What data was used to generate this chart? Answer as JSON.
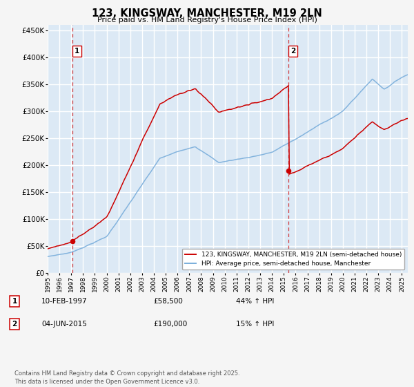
{
  "title": "123, KINGSWAY, MANCHESTER, M19 2LN",
  "subtitle": "Price paid vs. HM Land Registry's House Price Index (HPI)",
  "legend_line1": "123, KINGSWAY, MANCHESTER, M19 2LN (semi-detached house)",
  "legend_line2": "HPI: Average price, semi-detached house, Manchester",
  "annotation1_label": "1",
  "annotation1_date": "10-FEB-1997",
  "annotation1_price": "£58,500",
  "annotation1_hpi": "44% ↑ HPI",
  "annotation2_label": "2",
  "annotation2_date": "04-JUN-2015",
  "annotation2_price": "£190,000",
  "annotation2_hpi": "15% ↑ HPI",
  "footnote": "Contains HM Land Registry data © Crown copyright and database right 2025.\nThis data is licensed under the Open Government Licence v3.0.",
  "sale1_year": 1997.11,
  "sale1_price": 58500,
  "sale2_year": 2015.42,
  "sale2_price": 190000,
  "price_line_color": "#cc0000",
  "hpi_line_color": "#7aaedb",
  "plot_bg_color": "#dce9f5",
  "fig_bg_color": "#f5f5f5",
  "grid_color": "#ffffff",
  "annotation_box_color": "#cc0000",
  "ylim": [
    0,
    460000
  ],
  "xmin": 1995.0,
  "xmax": 2025.5
}
